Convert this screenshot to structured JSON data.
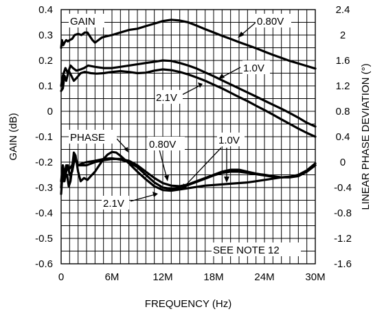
{
  "chart_data": {
    "type": "line",
    "xlabel": "FREQUENCY (Hz)",
    "ylabel": "GAIN (dB)",
    "y2label": "LINEAR PHASE DEVIATION (°)",
    "xlim": [
      0,
      30
    ],
    "ylim": [
      -0.6,
      0.4
    ],
    "y2lim": [
      -1.6,
      2.4
    ],
    "grid": true,
    "x_ticks": [
      0,
      6,
      12,
      18,
      24,
      30
    ],
    "x_tick_labels": [
      "0",
      "6M",
      "12M",
      "18M",
      "24M",
      "30M"
    ],
    "y_ticks": [
      0.4,
      0.3,
      0.2,
      0.1,
      0,
      -0.1,
      -0.2,
      -0.3,
      -0.4,
      -0.5,
      -0.6
    ],
    "y_tick_labels": [
      "0.4",
      "0.3",
      "0.2",
      "0.1",
      "0",
      "-0.1",
      "-0.2",
      "-0.3",
      "-0.4",
      "-0.5",
      "-0.6"
    ],
    "y2_ticks": [
      2.4,
      2.0,
      1.6,
      1.2,
      0.8,
      0.4,
      0,
      -0.4,
      -0.8,
      -1.2,
      -1.6
    ],
    "y2_tick_labels": [
      "2.4",
      "2",
      "1.6",
      "1.2",
      "0.8",
      "0.4",
      "0",
      "-0.4",
      "-0.8",
      "-1.2",
      "-1.6"
    ],
    "series": [
      {
        "group": "GAIN",
        "axis": "left",
        "label": "0.80V",
        "x": [
          0,
          0.1,
          0.25,
          0.4,
          0.6,
          0.8,
          1.0,
          1.3,
          1.6,
          2.0,
          2.4,
          2.8,
          3.1,
          3.4,
          3.7,
          4.0,
          4.4,
          4.8,
          5.3,
          6,
          7,
          8,
          9,
          10,
          11,
          12,
          13,
          14,
          15,
          16,
          17,
          18,
          19,
          20,
          21,
          22,
          23,
          24,
          25,
          26,
          27,
          28,
          29,
          30
        ],
        "y": [
          0.25,
          0.28,
          0.26,
          0.27,
          0.28,
          0.275,
          0.28,
          0.285,
          0.3,
          0.305,
          0.3,
          0.31,
          0.31,
          0.295,
          0.28,
          0.27,
          0.28,
          0.29,
          0.295,
          0.3,
          0.31,
          0.32,
          0.325,
          0.335,
          0.345,
          0.355,
          0.36,
          0.357,
          0.35,
          0.337,
          0.323,
          0.31,
          0.297,
          0.285,
          0.272,
          0.26,
          0.248,
          0.235,
          0.222,
          0.21,
          0.198,
          0.188,
          0.178,
          0.168
        ]
      },
      {
        "group": "GAIN",
        "axis": "left",
        "label": "1.0V",
        "x": [
          0,
          0.2,
          0.5,
          0.8,
          1.1,
          1.4,
          1.8,
          2.3,
          2.7,
          3.2,
          4,
          5,
          6,
          7,
          8,
          9,
          10,
          11,
          12,
          13,
          14,
          15,
          16,
          17,
          18,
          19,
          20,
          21,
          22,
          23,
          24,
          25,
          26,
          27,
          28,
          29,
          30
        ],
        "y": [
          0.1,
          0.14,
          0.17,
          0.15,
          0.18,
          0.17,
          0.16,
          0.165,
          0.17,
          0.18,
          0.175,
          0.17,
          0.17,
          0.175,
          0.18,
          0.185,
          0.19,
          0.195,
          0.2,
          0.198,
          0.19,
          0.18,
          0.168,
          0.153,
          0.138,
          0.122,
          0.106,
          0.09,
          0.074,
          0.058,
          0.042,
          0.026,
          0.01,
          -0.007,
          -0.025,
          -0.045,
          -0.06
        ]
      },
      {
        "group": "GAIN",
        "axis": "left",
        "label": "2.1V",
        "x": [
          0,
          0.2,
          0.4,
          0.6,
          0.9,
          1.2,
          1.5,
          1.8,
          2.3,
          2.8,
          3.5,
          4.2,
          5,
          6,
          7,
          8,
          9,
          10,
          11,
          12,
          13,
          14,
          15,
          16,
          17,
          18,
          19,
          20,
          21,
          22,
          23,
          24,
          25,
          26,
          27,
          28,
          29,
          30
        ],
        "y": [
          0.08,
          0.09,
          0.14,
          0.12,
          0.16,
          0.14,
          0.12,
          0.13,
          0.15,
          0.155,
          0.15,
          0.148,
          0.15,
          0.155,
          0.158,
          0.155,
          0.15,
          0.152,
          0.16,
          0.165,
          0.162,
          0.155,
          0.145,
          0.133,
          0.12,
          0.105,
          0.09,
          0.073,
          0.056,
          0.04,
          0.022,
          0.005,
          -0.013,
          -0.032,
          -0.05,
          -0.068,
          -0.085,
          -0.1
        ]
      },
      {
        "group": "PHASE",
        "axis": "right",
        "label": "0.80V",
        "x": [
          0,
          0.15,
          0.3,
          0.5,
          0.7,
          0.9,
          1.1,
          1.3,
          1.5,
          1.7,
          2.0,
          2.3,
          2.7,
          3.1,
          3.5,
          4,
          4.5,
          5,
          5.5,
          6,
          6.5,
          7,
          8,
          9,
          10,
          11,
          12,
          13,
          14,
          15,
          16,
          17,
          18,
          19,
          20,
          21,
          22,
          23,
          24,
          25,
          26,
          27,
          28,
          29,
          30
        ],
        "y": [
          -0.4,
          -0.1,
          -0.3,
          -0.2,
          -0.2,
          -0.38,
          -0.3,
          -0.1,
          0.15,
          0.1,
          -0.15,
          -0.3,
          -0.25,
          -0.28,
          -0.22,
          -0.15,
          -0.05,
          0.05,
          0.12,
          0.16,
          0.15,
          0.1,
          -0.02,
          -0.15,
          -0.27,
          -0.38,
          -0.44,
          -0.45,
          -0.43,
          -0.41,
          -0.39,
          -0.37,
          -0.36,
          -0.35,
          -0.34,
          -0.33,
          -0.32,
          -0.3,
          -0.28,
          -0.26,
          -0.24,
          -0.23,
          -0.2,
          -0.13,
          -0.02
        ]
      },
      {
        "group": "PHASE",
        "axis": "right",
        "label": "1.0V",
        "x": [
          0,
          0.2,
          0.4,
          0.6,
          0.8,
          1.0,
          1.3,
          1.6,
          2.0,
          2.5,
          3,
          4,
          5,
          6,
          7,
          8,
          9,
          10,
          11,
          12,
          13,
          14,
          15,
          16,
          17,
          18,
          19,
          20,
          21,
          22,
          23,
          24,
          25,
          26,
          27,
          28,
          29,
          30
        ],
        "y": [
          -0.3,
          -0.05,
          -0.2,
          -0.05,
          -0.1,
          -0.1,
          -0.05,
          0.1,
          -0.05,
          -0.05,
          -0.05,
          0,
          0.03,
          0.05,
          0.05,
          0.02,
          -0.05,
          -0.15,
          -0.25,
          -0.33,
          -0.37,
          -0.38,
          -0.35,
          -0.3,
          -0.25,
          -0.2,
          -0.15,
          -0.12,
          -0.12,
          -0.15,
          -0.18,
          -0.2,
          -0.22,
          -0.24,
          -0.24,
          -0.22,
          -0.15,
          -0.05
        ]
      },
      {
        "group": "PHASE",
        "axis": "right",
        "label": "2.1V",
        "x": [
          0,
          0.2,
          0.4,
          0.6,
          0.8,
          1.0,
          1.3,
          1.6,
          2.0,
          2.5,
          3,
          4,
          5,
          6,
          7,
          8,
          9,
          10,
          11,
          12,
          13,
          14,
          15,
          16,
          17,
          18,
          19,
          20,
          21,
          22,
          23,
          24,
          25,
          26,
          27,
          28,
          29,
          30
        ],
        "y": [
          -0.5,
          -0.1,
          -0.3,
          -0.15,
          -0.05,
          -0.2,
          -0.15,
          0.05,
          -0.05,
          -0.02,
          0,
          0.02,
          0.05,
          0.06,
          0.04,
          0,
          -0.08,
          -0.2,
          -0.32,
          -0.4,
          -0.42,
          -0.4,
          -0.36,
          -0.31,
          -0.26,
          -0.21,
          -0.17,
          -0.15,
          -0.15,
          -0.17,
          -0.19,
          -0.21,
          -0.23,
          -0.24,
          -0.23,
          -0.21,
          -0.15,
          -0.05
        ]
      }
    ],
    "annotations": {
      "gain_group": "GAIN",
      "phase_group": "PHASE",
      "label_080_gain": "0.80V",
      "label_10_gain": "1.0V",
      "label_21_gain": "2.1V",
      "label_080_phase": "0.80V",
      "label_10_phase": "1.0V",
      "label_21_phase": "2.1V",
      "note": "SEE NOTE 12"
    }
  }
}
